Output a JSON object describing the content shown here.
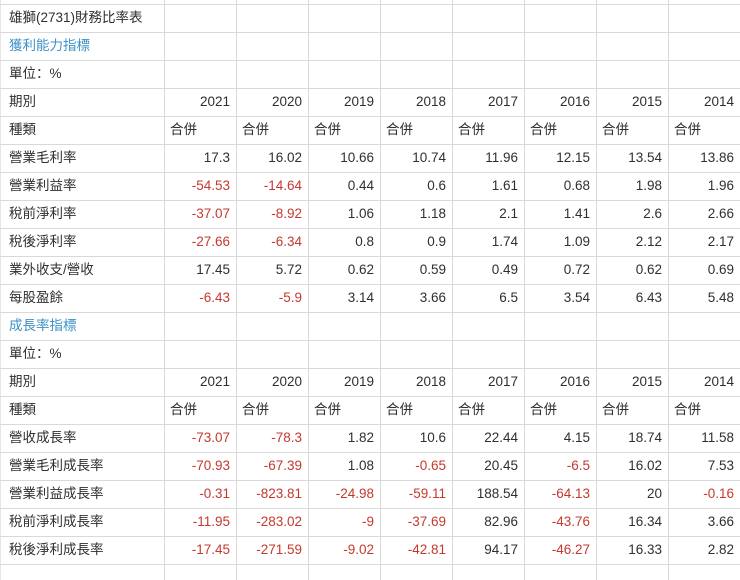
{
  "window": {
    "title": "雄獅(2731)財務比率表"
  },
  "colors": {
    "negative": "#c5392e",
    "link": "#3e92c7",
    "grid": "#d9d9d9",
    "text": "#2f2f2f",
    "bg": "#ffffff"
  },
  "sections": [
    {
      "heading": "獲利能力指標",
      "unit": "單位：%",
      "period_label": "期別",
      "type_label": "種類",
      "years": [
        "2021",
        "2020",
        "2019",
        "2018",
        "2017",
        "2016",
        "2015",
        "2014"
      ],
      "types": [
        "合併",
        "合併",
        "合併",
        "合併",
        "合併",
        "合併",
        "合併",
        "合併"
      ],
      "rows": [
        {
          "label": "營業毛利率",
          "values": [
            "17.3",
            "16.02",
            "10.66",
            "10.74",
            "11.96",
            "12.15",
            "13.54",
            "13.86"
          ]
        },
        {
          "label": "營業利益率",
          "values": [
            "-54.53",
            "-14.64",
            "0.44",
            "0.6",
            "1.61",
            "0.68",
            "1.98",
            "1.96"
          ]
        },
        {
          "label": "稅前淨利率",
          "values": [
            "-37.07",
            "-8.92",
            "1.06",
            "1.18",
            "2.1",
            "1.41",
            "2.6",
            "2.66"
          ]
        },
        {
          "label": "稅後淨利率",
          "values": [
            "-27.66",
            "-6.34",
            "0.8",
            "0.9",
            "1.74",
            "1.09",
            "2.12",
            "2.17"
          ]
        },
        {
          "label": "業外收支/營收",
          "values": [
            "17.45",
            "5.72",
            "0.62",
            "0.59",
            "0.49",
            "0.72",
            "0.62",
            "0.69"
          ]
        },
        {
          "label": "每股盈餘",
          "values": [
            "-6.43",
            "-5.9",
            "3.14",
            "3.66",
            "6.5",
            "3.54",
            "6.43",
            "5.48"
          ]
        }
      ]
    },
    {
      "heading": "成長率指標",
      "unit": "單位：%",
      "period_label": "期別",
      "type_label": "種類",
      "years": [
        "2021",
        "2020",
        "2019",
        "2018",
        "2017",
        "2016",
        "2015",
        "2014"
      ],
      "types": [
        "合併",
        "合併",
        "合併",
        "合併",
        "合併",
        "合併",
        "合併",
        "合併"
      ],
      "rows": [
        {
          "label": "營收成長率",
          "values": [
            "-73.07",
            "-78.3",
            "1.82",
            "10.6",
            "22.44",
            "4.15",
            "18.74",
            "11.58"
          ]
        },
        {
          "label": "營業毛利成長率",
          "values": [
            "-70.93",
            "-67.39",
            "1.08",
            "-0.65",
            "20.45",
            "-6.5",
            "16.02",
            "7.53"
          ]
        },
        {
          "label": "營業利益成長率",
          "values": [
            "-0.31",
            "-823.81",
            "-24.98",
            "-59.11",
            "188.54",
            "-64.13",
            "20",
            "-0.16"
          ]
        },
        {
          "label": "稅前淨利成長率",
          "values": [
            "-11.95",
            "-283.02",
            "-9",
            "-37.69",
            "82.96",
            "-43.76",
            "16.34",
            "3.66"
          ]
        },
        {
          "label": "稅後淨利成長率",
          "values": [
            "-17.45",
            "-271.59",
            "-9.02",
            "-42.81",
            "94.17",
            "-46.27",
            "16.33",
            "2.82"
          ]
        }
      ]
    }
  ]
}
